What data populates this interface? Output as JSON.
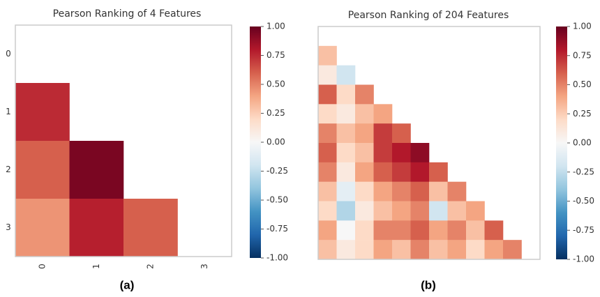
{
  "chart_data": [
    {
      "type": "heatmap",
      "title": "Pearson Ranking of 4 Features",
      "caption": "(a)",
      "categories": [
        "0",
        "1",
        "2",
        "3"
      ],
      "values": [
        [
          null,
          null,
          null,
          null
        ],
        [
          0.75,
          null,
          null,
          null
        ],
        [
          0.6,
          0.95,
          null,
          null
        ],
        [
          0.45,
          0.78,
          0.6,
          null
        ]
      ],
      "colormap": "RdBu_r",
      "clim": [
        -1,
        1
      ],
      "cticks": [
        {
          "value": 1,
          "label": "1.00"
        },
        {
          "value": 0.75,
          "label": "0.75"
        },
        {
          "value": 0.5,
          "label": "0.50"
        },
        {
          "value": 0.25,
          "label": "0.25"
        },
        {
          "value": 0,
          "label": "0.00"
        },
        {
          "value": -0.25,
          "label": "-0.25"
        },
        {
          "value": -0.5,
          "label": "-0.50"
        },
        {
          "value": -0.75,
          "label": "-0.75"
        },
        {
          "value": -1,
          "label": "-1.00"
        }
      ]
    },
    {
      "type": "heatmap",
      "title": "Pearson Ranking of 204 Features",
      "caption": "(b)",
      "values": [
        [
          null,
          null,
          null,
          null,
          null,
          null,
          null,
          null,
          null,
          null,
          null,
          null
        ],
        [
          0.3,
          null,
          null,
          null,
          null,
          null,
          null,
          null,
          null,
          null,
          null,
          null
        ],
        [
          0.1,
          -0.2,
          null,
          null,
          null,
          null,
          null,
          null,
          null,
          null,
          null,
          null
        ],
        [
          0.6,
          0.2,
          0.5,
          null,
          null,
          null,
          null,
          null,
          null,
          null,
          null,
          null
        ],
        [
          0.2,
          0.1,
          0.3,
          0.4,
          null,
          null,
          null,
          null,
          null,
          null,
          null,
          null
        ],
        [
          0.5,
          0.3,
          0.4,
          0.7,
          0.6,
          null,
          null,
          null,
          null,
          null,
          null,
          null
        ],
        [
          0.6,
          0.2,
          0.3,
          0.7,
          0.8,
          0.9,
          null,
          null,
          null,
          null,
          null,
          null
        ],
        [
          0.5,
          0.1,
          0.4,
          0.6,
          0.7,
          0.8,
          0.6,
          null,
          null,
          null,
          null,
          null
        ],
        [
          0.3,
          -0.1,
          0.2,
          0.4,
          0.5,
          0.6,
          0.3,
          0.5,
          null,
          null,
          null,
          null
        ],
        [
          0.2,
          -0.3,
          0.1,
          0.3,
          0.4,
          0.5,
          -0.2,
          0.3,
          0.4,
          null,
          null,
          null
        ],
        [
          0.4,
          0.0,
          0.2,
          0.5,
          0.5,
          0.6,
          0.4,
          0.5,
          0.3,
          0.6,
          null,
          null
        ],
        [
          0.3,
          0.1,
          0.2,
          0.4,
          0.3,
          0.5,
          0.3,
          0.4,
          0.2,
          0.4,
          0.5,
          null
        ]
      ],
      "colormap": "RdBu_r",
      "clim": [
        -1,
        1
      ],
      "cticks": [
        {
          "value": 1,
          "label": "1.00"
        },
        {
          "value": 0.75,
          "label": "0.75"
        },
        {
          "value": 0.5,
          "label": "0.50"
        },
        {
          "value": 0.25,
          "label": "0.25"
        },
        {
          "value": 0,
          "label": "0.00"
        },
        {
          "value": -0.25,
          "label": "-0.25"
        },
        {
          "value": -0.5,
          "label": "-0.50"
        },
        {
          "value": -0.75,
          "label": "-0.75"
        },
        {
          "value": -1,
          "label": "-1.00"
        }
      ]
    }
  ]
}
